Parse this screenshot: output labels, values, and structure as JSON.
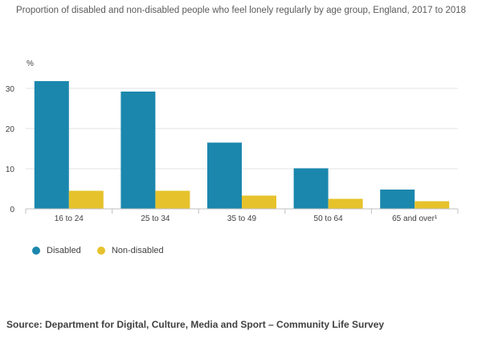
{
  "chart_data": {
    "type": "bar",
    "title": "Proportion of disabled and non-disabled people who feel lonely regularly by age group, England, 2017 to 2018",
    "ylabel": "%",
    "xlabel": "",
    "categories": [
      "16 to 24",
      "25 to 34",
      "35 to 49",
      "50 to 64",
      "65 and over¹"
    ],
    "series": [
      {
        "name": "Disabled",
        "color": "#1b87ad",
        "values": [
          31.8,
          29.2,
          16.5,
          10.1,
          4.8
        ]
      },
      {
        "name": "Non-disabled",
        "color": "#e6c32c",
        "values": [
          4.5,
          4.5,
          3.3,
          2.5,
          1.9
        ]
      }
    ],
    "ylim": [
      0,
      30
    ],
    "yticks": [
      0,
      10,
      20,
      30
    ],
    "grid": true,
    "legend_position": "bottom-left"
  },
  "source": "Source: Department for Digital, Culture, Media and Sport – Community Life Survey"
}
